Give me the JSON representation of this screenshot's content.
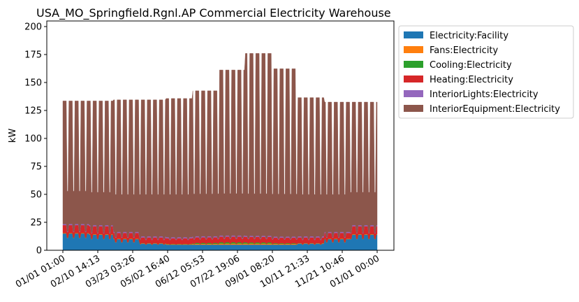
{
  "chart_data": {
    "type": "area",
    "title": "USA_MO_Springfield.Rgnl.AP Commercial Electricity Warehouse",
    "xlabel": "",
    "ylabel": "kW",
    "ylim": [
      0,
      205
    ],
    "yticks": [
      0,
      25,
      50,
      75,
      100,
      125,
      150,
      175,
      200
    ],
    "xticks": [
      "01/01 01:00",
      "02/10 14:13",
      "03/23 03:26",
      "05/02 16:40",
      "06/12 05:53",
      "07/22 19:06",
      "09/01 08:20",
      "10/11 21:33",
      "11/21 10:46",
      "01/01 00:00"
    ],
    "grid": false,
    "legend_position": "outside-right",
    "x_unit": "day of year",
    "xlim": [
      1,
      366
    ],
    "week_pattern": [
      "weekday",
      "weekday",
      "weekday",
      "weekday",
      "weekday",
      "weekend",
      "weekend"
    ],
    "series": [
      {
        "name": "Electricity:Facility",
        "color": "#1f77b4",
        "monthly_weekday_kw": [
          15,
          14,
          10,
          6,
          5,
          5,
          5,
          5,
          5,
          6,
          10,
          14
        ],
        "monthly_weekend_kw": [
          11,
          10,
          7,
          5,
          5,
          5,
          5,
          5,
          5,
          5,
          7,
          10
        ]
      },
      {
        "name": "Fans:Electricity",
        "color": "#ff7f0e",
        "monthly_weekday_kw": [
          0.5,
          0.5,
          0.5,
          0.5,
          0.5,
          0.8,
          1.0,
          1.0,
          0.8,
          0.5,
          0.5,
          0.5
        ],
        "monthly_weekend_kw": [
          0.3,
          0.3,
          0.3,
          0.3,
          0.3,
          0.5,
          0.6,
          0.6,
          0.5,
          0.3,
          0.3,
          0.3
        ]
      },
      {
        "name": "Cooling:Electricity",
        "color": "#2ca02c",
        "monthly_weekday_kw": [
          0,
          0,
          0,
          0,
          0.2,
          0.8,
          1.2,
          1.0,
          0.5,
          0,
          0,
          0
        ],
        "monthly_weekend_kw": [
          0,
          0,
          0,
          0,
          0,
          0.3,
          0.5,
          0.4,
          0.2,
          0,
          0,
          0
        ]
      },
      {
        "name": "Heating:Electricity",
        "color": "#d62728",
        "monthly_weekday_kw": [
          7,
          7,
          5,
          5,
          5,
          5,
          5,
          5,
          5,
          5,
          5,
          7
        ],
        "monthly_weekend_kw": [
          5,
          5,
          4,
          4,
          4,
          4,
          4,
          4,
          4,
          4,
          4,
          5
        ]
      },
      {
        "name": "InteriorLights:Electricity",
        "color": "#9467bd",
        "monthly_weekday_kw": [
          1,
          1,
          1,
          1,
          1,
          1,
          1,
          1,
          1,
          1,
          1,
          1
        ],
        "monthly_weekend_kw": [
          0.5,
          0.5,
          0.5,
          0.5,
          0.5,
          0.5,
          0.5,
          0.5,
          0.5,
          0.5,
          0.5,
          0.5
        ]
      },
      {
        "name": "InteriorEquipment:Electricity",
        "color": "#8c564b",
        "monthly_weekday_kw": [
          110,
          111,
          118,
          122,
          124,
          130,
          148,
          163,
          150,
          124,
          116,
          110
        ],
        "monthly_weekend_kw": [
          36,
          36,
          38,
          40,
          40,
          40,
          40,
          40,
          40,
          40,
          38,
          36
        ]
      }
    ]
  }
}
